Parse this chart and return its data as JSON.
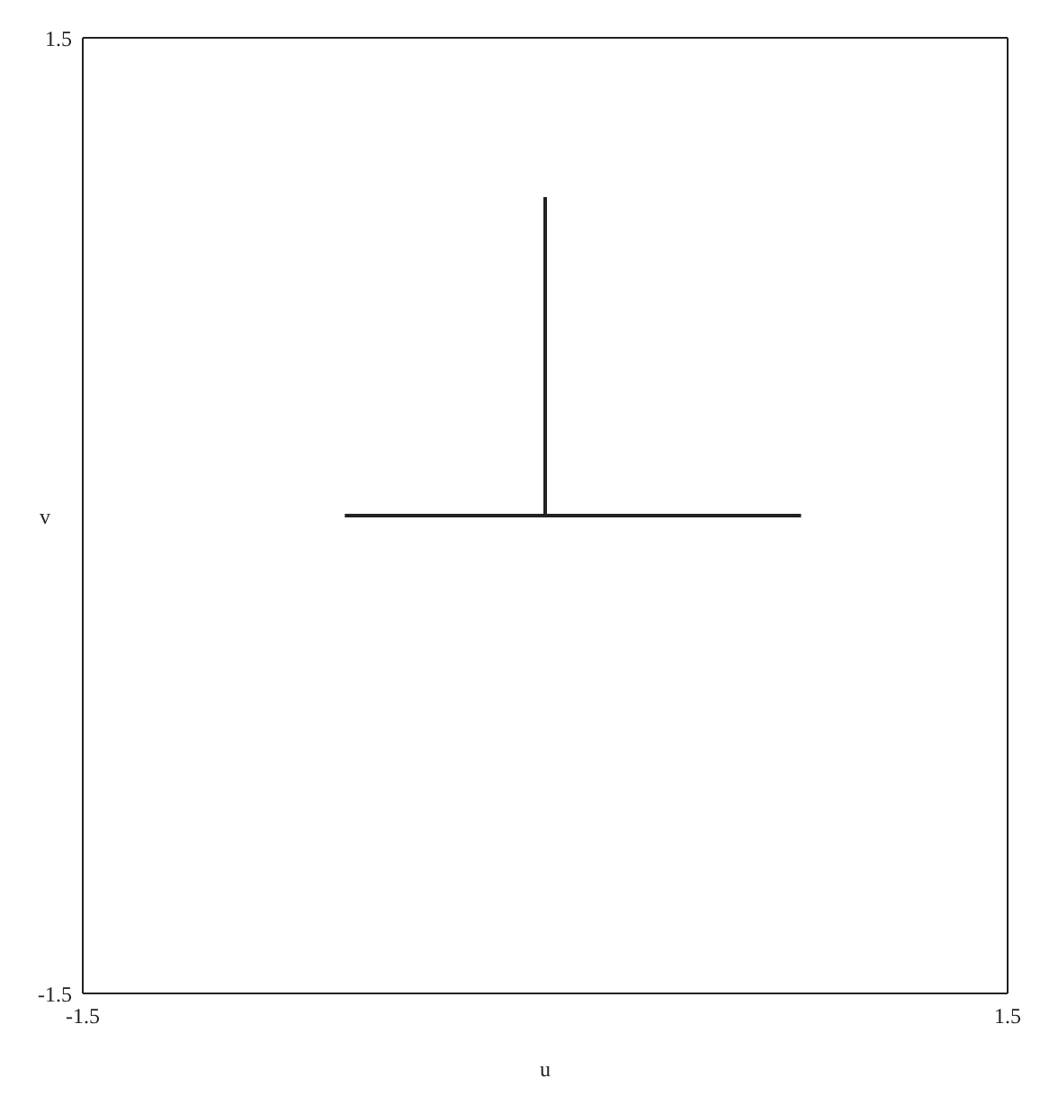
{
  "chart_data": {
    "type": "line",
    "xlabel": "u",
    "ylabel": "v",
    "series": [
      {
        "color": "#222222",
        "x": [
          -0.65,
          0.83
        ],
        "values": [
          0,
          0
        ]
      },
      {
        "color": "#222222",
        "x": [
          0,
          0
        ],
        "values": [
          0,
          1.0
        ]
      }
    ],
    "xlim": [
      -1.5,
      1.5
    ],
    "xticks": [
      -1.5,
      1.5
    ],
    "ylim": [
      -1.5,
      1.5
    ],
    "yticks": [
      -1.5,
      1.5
    ],
    "marker": "none",
    "line_style": "solid"
  }
}
